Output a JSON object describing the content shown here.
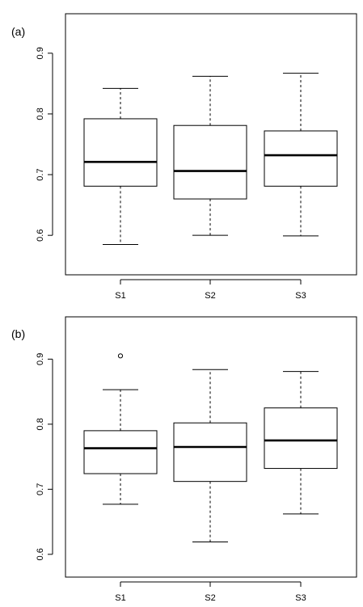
{
  "chart_data": [
    {
      "type": "boxplot",
      "panel_label": "(a)",
      "categories": [
        "S1",
        "S2",
        "S3"
      ],
      "ylim": [
        0.535,
        0.965
      ],
      "yticks": [
        0.6,
        0.7,
        0.8,
        0.9
      ],
      "ytick_labels": [
        "0.6",
        "0.7",
        "0.8",
        "0.9"
      ],
      "boxes": [
        {
          "category": "S1",
          "whisker_low": 0.585,
          "q1": 0.681,
          "median": 0.721,
          "q3": 0.792,
          "whisker_high": 0.842,
          "outliers": []
        },
        {
          "category": "S2",
          "whisker_low": 0.6,
          "q1": 0.66,
          "median": 0.706,
          "q3": 0.781,
          "whisker_high": 0.862,
          "outliers": []
        },
        {
          "category": "S3",
          "whisker_low": 0.599,
          "q1": 0.681,
          "median": 0.732,
          "q3": 0.772,
          "whisker_high": 0.867,
          "outliers": []
        }
      ],
      "grid": false,
      "legend": "none"
    },
    {
      "type": "boxplot",
      "panel_label": "(b)",
      "categories": [
        "S1",
        "S2",
        "S3"
      ],
      "ylim": [
        0.565,
        0.965
      ],
      "yticks": [
        0.6,
        0.7,
        0.8,
        0.9
      ],
      "ytick_labels": [
        "0.6",
        "0.7",
        "0.8",
        "0.9"
      ],
      "boxes": [
        {
          "category": "S1",
          "whisker_low": 0.677,
          "q1": 0.724,
          "median": 0.763,
          "q3": 0.79,
          "whisker_high": 0.853,
          "outliers": [
            0.905
          ]
        },
        {
          "category": "S2",
          "whisker_low": 0.619,
          "q1": 0.712,
          "median": 0.765,
          "q3": 0.802,
          "whisker_high": 0.884,
          "outliers": []
        },
        {
          "category": "S3",
          "whisker_low": 0.662,
          "q1": 0.732,
          "median": 0.775,
          "q3": 0.825,
          "whisker_high": 0.881,
          "outliers": []
        }
      ],
      "grid": false,
      "legend": "none"
    }
  ]
}
